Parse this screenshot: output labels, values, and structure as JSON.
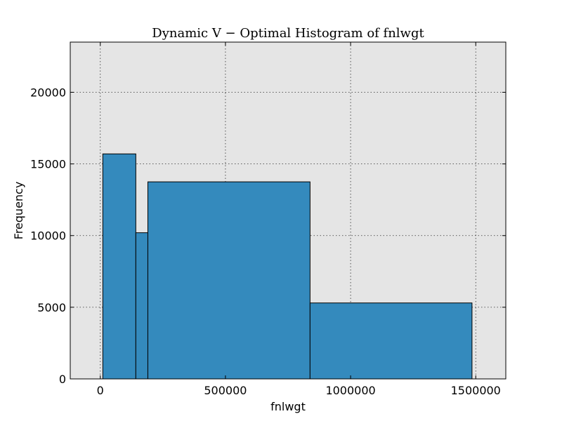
{
  "chart_data": {
    "type": "bar",
    "title": "Dynamic V − Optimal Histogram of fnlwgt",
    "xlabel": "fnlwgt",
    "ylabel": "Frequency",
    "xlim": [
      -120000,
      1620000
    ],
    "ylim": [
      0,
      23500
    ],
    "xticks": [
      0,
      500000,
      1000000,
      1500000
    ],
    "yticks": [
      0,
      5000,
      10000,
      15000,
      20000
    ],
    "grid": true,
    "colors": {
      "bar_fill": "#348abd",
      "bar_edge": "#000000",
      "plot_background": "#e5e5e5"
    },
    "bins": [
      {
        "start": 10000,
        "end": 142000,
        "value": 15700
      },
      {
        "start": 142000,
        "end": 190000,
        "value": 10200
      },
      {
        "start": 190000,
        "end": 838000,
        "value": 13750
      },
      {
        "start": 838000,
        "end": 1485000,
        "value": 5300
      }
    ]
  }
}
